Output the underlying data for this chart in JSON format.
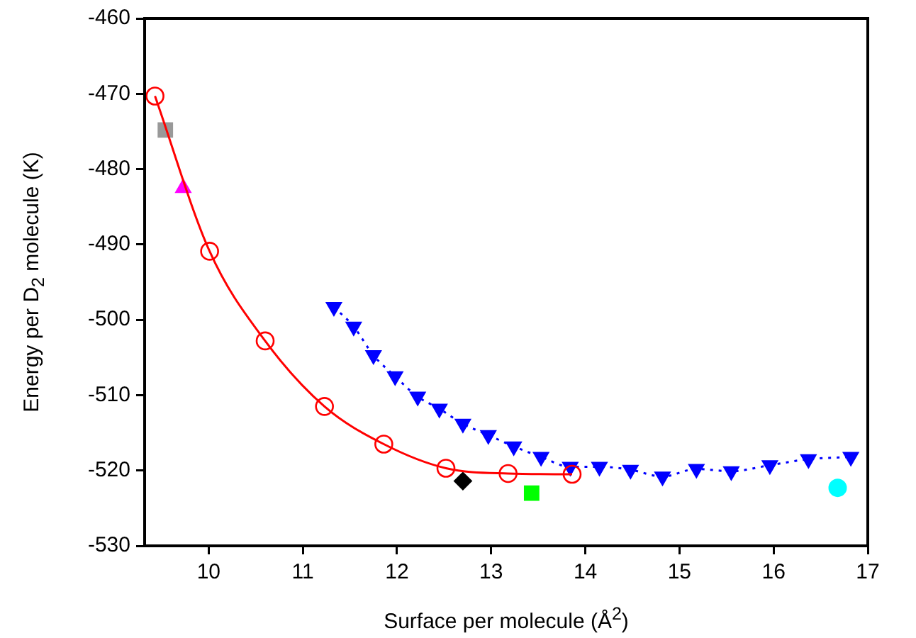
{
  "chart_data": {
    "type": "scatter",
    "xlabel": "Surface per molecule (Å$^{2}$)",
    "ylabel": "Energy per D$_{2}$ molecule (K)",
    "xlim": [
      9.32,
      17
    ],
    "xticks": [
      10,
      11,
      12,
      13,
      14,
      15,
      16,
      17
    ],
    "ylim": [
      -530,
      -460
    ],
    "yticks": [
      -530,
      -520,
      -510,
      -500,
      -490,
      -480,
      -470,
      -460
    ],
    "grid": false,
    "legend": false,
    "series": [
      {
        "type": "line",
        "color": "#ff0000",
        "marker": "circle",
        "line_style": "solid",
        "x": [
          9.43,
          10.01,
          10.6,
          11.23,
          11.86,
          12.52,
          13.18,
          13.86
        ],
        "values": [
          -470.3,
          -490.9,
          -502.8,
          -511.5,
          -516.5,
          -519.7,
          -520.4,
          -520.5
        ]
      },
      {
        "type": "line",
        "color": "#0000ff",
        "marker": "triangle",
        "line_style": "dotted",
        "x": [
          11.33,
          11.54,
          11.75,
          11.98,
          12.22,
          12.45,
          12.7,
          12.97,
          13.24,
          13.53,
          13.84,
          14.15,
          14.48,
          14.82,
          15.18,
          15.55,
          15.96,
          16.37,
          16.82
        ],
        "values": [
          -498.3,
          -500.9,
          -504.7,
          -507.5,
          -510.2,
          -511.8,
          -513.8,
          -515.3,
          -516.8,
          -518.2,
          -519.5,
          -519.5,
          -519.9,
          -520.8,
          -519.8,
          -520.1,
          -519.3,
          -518.5,
          -518.2
        ]
      },
      {
        "color": "#999999",
        "marker": "square",
        "x": [
          9.54
        ],
        "values": [
          -474.8
        ]
      },
      {
        "color": "#ff00ff",
        "marker": "triangle",
        "x": [
          9.73
        ],
        "values": [
          -482.5
        ]
      },
      {
        "color": "#000000",
        "marker": "diamond",
        "x": [
          12.7
        ],
        "values": [
          -521.4
        ]
      },
      {
        "color": "#00ff00",
        "marker": "square",
        "x": [
          13.43
        ],
        "values": [
          -523.0
        ]
      },
      {
        "color": "#00ffff",
        "marker": "circle",
        "x": [
          16.68
        ],
        "values": [
          -522.3
        ]
      }
    ]
  }
}
